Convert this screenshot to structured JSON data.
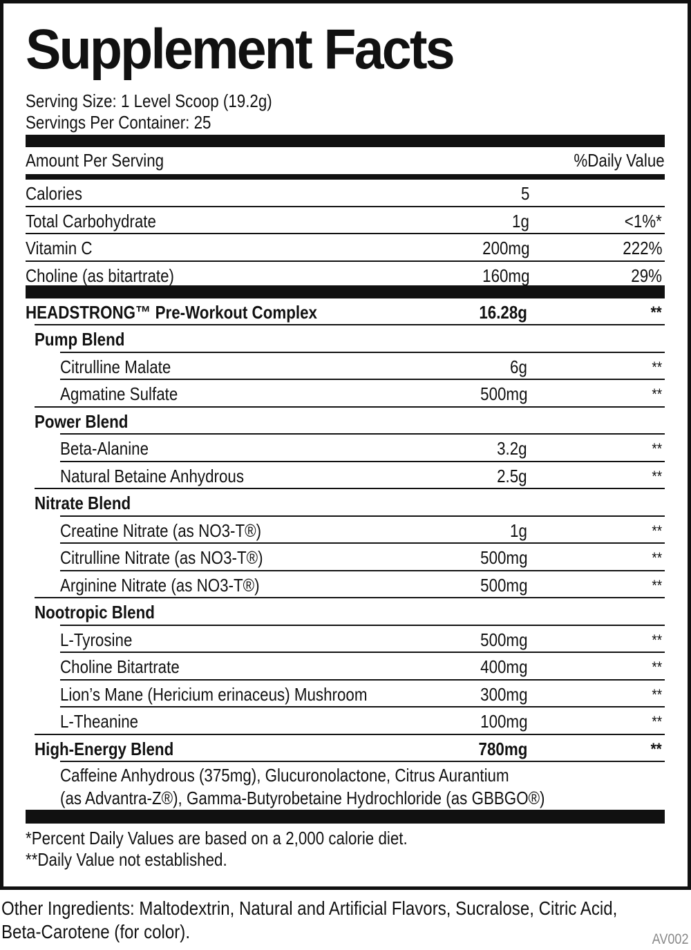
{
  "title": "Supplement Facts",
  "serving_size": "Serving Size: 1 Level Scoop (19.2g)",
  "servings_per_container": "Servings Per Container: 25",
  "header": {
    "amount_label": "Amount Per Serving",
    "dv_label": "%Daily Value"
  },
  "rows": [
    {
      "type": "top",
      "label": "Calories",
      "amount": "5",
      "dv": ""
    },
    {
      "type": "top",
      "label": "Total Carbohydrate",
      "amount": "1g",
      "dv": "<1%*"
    },
    {
      "type": "top",
      "label": "Vitamin C",
      "amount": "200mg",
      "dv": "222%"
    },
    {
      "type": "top",
      "label": "Choline (as bitartrate)",
      "amount": "160mg",
      "dv": "29%"
    },
    {
      "type": "complex",
      "label": "HEADSTRONG™ Pre-Workout Complex",
      "amount": "16.28g",
      "dv": "**"
    },
    {
      "type": "blend",
      "label": "Pump Blend",
      "amount": "",
      "dv": ""
    },
    {
      "type": "item",
      "label": "Citrulline Malate",
      "amount": "6g",
      "dv": "**"
    },
    {
      "type": "item",
      "label": "Agmatine Sulfate",
      "amount": "500mg",
      "dv": "**"
    },
    {
      "type": "blend",
      "label": "Power Blend",
      "amount": "",
      "dv": ""
    },
    {
      "type": "item",
      "label": "Beta-Alanine",
      "amount": "3.2g",
      "dv": "**"
    },
    {
      "type": "item",
      "label": "Natural Betaine Anhydrous",
      "amount": "2.5g",
      "dv": "**"
    },
    {
      "type": "blend",
      "label": "Nitrate Blend",
      "amount": "",
      "dv": ""
    },
    {
      "type": "item",
      "label": "Creatine Nitrate (as NO3-T®)",
      "amount": "1g",
      "dv": "**"
    },
    {
      "type": "item",
      "label": "Citrulline Nitrate (as NO3-T®)",
      "amount": "500mg",
      "dv": "**"
    },
    {
      "type": "item",
      "label": "Arginine Nitrate (as NO3-T®)",
      "amount": "500mg",
      "dv": "**"
    },
    {
      "type": "blend",
      "label": "Nootropic Blend",
      "amount": "",
      "dv": ""
    },
    {
      "type": "item",
      "label": "L-Tyrosine",
      "amount": "500mg",
      "dv": "**"
    },
    {
      "type": "item",
      "label": "Choline Bitartrate",
      "amount": "400mg",
      "dv": "**"
    },
    {
      "type": "item",
      "label": "Lion’s Mane (Hericium erinaceus) Mushroom",
      "amount": "300mg",
      "dv": "**"
    },
    {
      "type": "item",
      "label": "L-Theanine",
      "amount": "100mg",
      "dv": "**"
    },
    {
      "type": "blend",
      "label": "High-Energy Blend",
      "amount": "780mg",
      "dv": "**"
    }
  ],
  "high_energy_ingredients": [
    "Caffeine Anhydrous (375mg), Glucuronolactone, Citrus Aurantium",
    "(as Advantra-Z®), Gamma-Butyrobetaine Hydrochloride (as GBBGO®)"
  ],
  "footnotes": [
    "*Percent Daily Values are based on a 2,000 calorie diet.",
    "**Daily Value not established."
  ],
  "other_ingredients": [
    "Other Ingredients: Maltodextrin, Natural and Artificial Flavors, Sucralose, Citric Acid,",
    "Beta-Carotene (for color)."
  ],
  "code": "AV002"
}
